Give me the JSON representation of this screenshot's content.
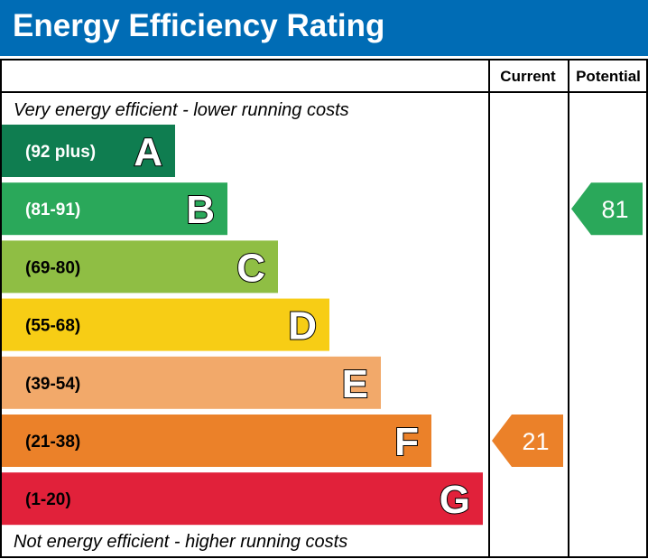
{
  "header": {
    "title": "Energy Efficiency Rating"
  },
  "columns": {
    "current": "Current",
    "potential": "Potential"
  },
  "notes": {
    "top": "Very energy efficient - lower running costs",
    "bottom": "Not energy efficient - higher running costs"
  },
  "colors": {
    "header_bg": "#006cb5",
    "A": "#0f7d50",
    "B": "#2aa85a",
    "C": "#8fbe44",
    "D": "#f7cd15",
    "E": "#f2a96a",
    "F": "#eb8129",
    "G": "#e1213a"
  },
  "chart_data": {
    "type": "bar",
    "bands": [
      {
        "letter": "A",
        "range": "(92 plus)",
        "color": "#0f7d50",
        "text_color": "#ffffff"
      },
      {
        "letter": "B",
        "range": "(81-91)",
        "color": "#2aa85a",
        "text_color": "#ffffff"
      },
      {
        "letter": "C",
        "range": "(69-80)",
        "color": "#8fbe44",
        "text_color": "#000000"
      },
      {
        "letter": "D",
        "range": "(55-68)",
        "color": "#f7cd15",
        "text_color": "#000000"
      },
      {
        "letter": "E",
        "range": "(39-54)",
        "color": "#f2a96a",
        "text_color": "#000000"
      },
      {
        "letter": "F",
        "range": "(21-38)",
        "color": "#eb8129",
        "text_color": "#000000"
      },
      {
        "letter": "G",
        "range": "(1-20)",
        "color": "#e1213a",
        "text_color": "#000000"
      }
    ],
    "current": {
      "value": 21,
      "band": "F",
      "color": "#eb8129"
    },
    "potential": {
      "value": 81,
      "band": "B",
      "color": "#2aa85a"
    }
  }
}
